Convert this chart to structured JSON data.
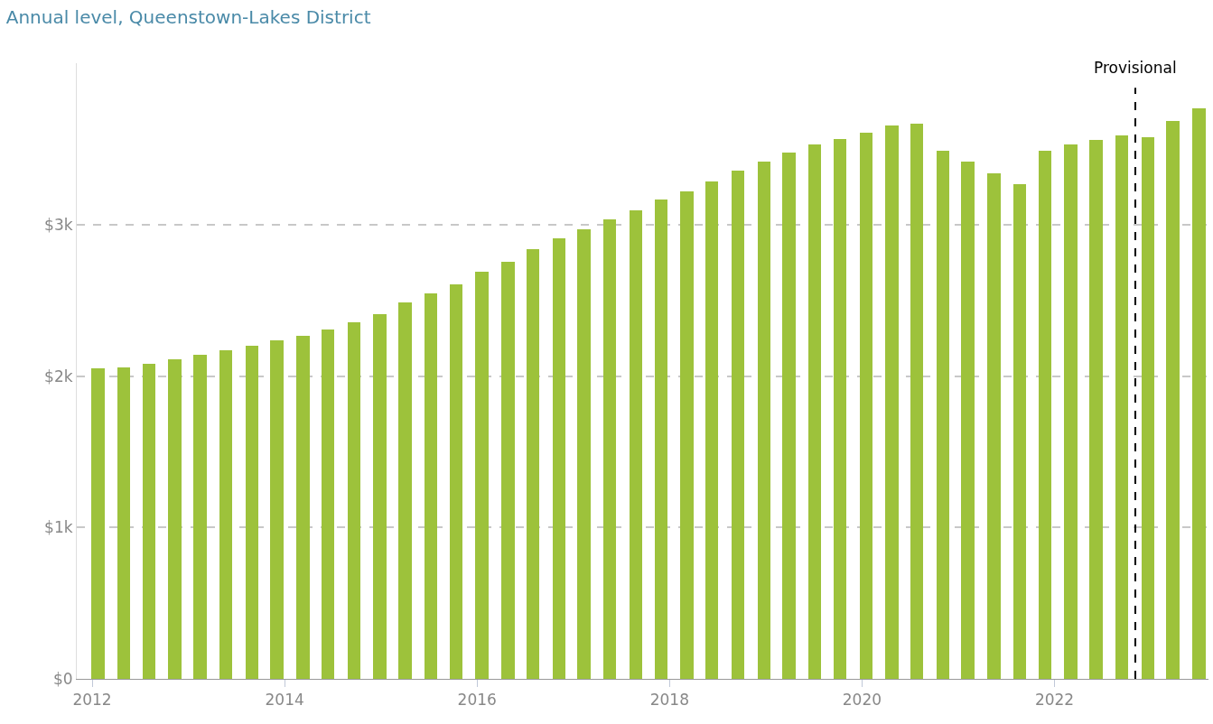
{
  "chart_data": {
    "type": "bar",
    "subtitle": "Annual level, Queenstown-Lakes District",
    "x": [
      2012.06,
      2012.33,
      2012.59,
      2012.86,
      2013.12,
      2013.39,
      2013.66,
      2013.92,
      2014.19,
      2014.45,
      2014.72,
      2014.99,
      2015.25,
      2015.52,
      2015.78,
      2016.05,
      2016.32,
      2016.58,
      2016.85,
      2017.11,
      2017.38,
      2017.65,
      2017.91,
      2018.18,
      2018.44,
      2018.71,
      2018.98,
      2019.24,
      2019.51,
      2019.77,
      2020.04,
      2020.31,
      2020.57,
      2020.84,
      2021.1,
      2021.37,
      2021.64,
      2021.9,
      2022.17,
      2022.43,
      2022.7,
      2022.97,
      2023.23,
      2023.5
    ],
    "values": [
      2050,
      2060,
      2080,
      2110,
      2140,
      2170,
      2200,
      2240,
      2270,
      2310,
      2360,
      2410,
      2490,
      2550,
      2610,
      2690,
      2760,
      2840,
      2910,
      2970,
      3040,
      3100,
      3170,
      3220,
      3290,
      3360,
      3420,
      3480,
      3530,
      3570,
      3610,
      3660,
      3670,
      3490,
      3420,
      3340,
      3270,
      3490,
      3530,
      3560,
      3590,
      3580,
      3690,
      3770
    ],
    "color": "#9dc23b",
    "xlim": [
      2011.84,
      2023.6
    ],
    "xticks": [
      2012,
      2014,
      2016,
      2018,
      2020,
      2022
    ],
    "ylim": [
      0,
      4070
    ],
    "yticks": [
      {
        "value": 0,
        "label": "$0"
      },
      {
        "value": 1000,
        "label": "$1k"
      },
      {
        "value": 2000,
        "label": "$2k"
      },
      {
        "value": 3000,
        "label": "$3k"
      }
    ],
    "grid": "y",
    "ref_lines": [
      {
        "axis": "x",
        "value": 2022.84,
        "label": "Provisional",
        "color": "#000000",
        "line_style": "dashed"
      }
    ]
  }
}
